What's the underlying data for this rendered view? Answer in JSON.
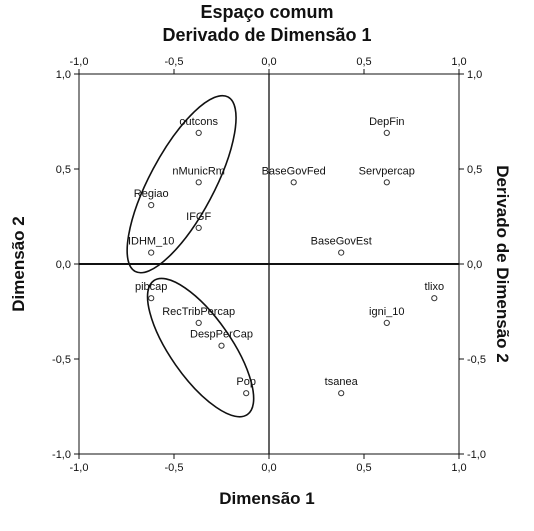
{
  "chart_data": {
    "type": "scatter",
    "title": "Espaço comum",
    "subtitle": "Derivado de Dimensão 1",
    "xlabel": "Dimensão 1",
    "ylabel": "Dimensão 2",
    "y2label": "Derivado de Dimensão 2",
    "xlim": [
      -1.0,
      1.0
    ],
    "ylim": [
      -1.0,
      1.0
    ],
    "xticks": [
      "-1,0",
      "-0,5",
      "0,0",
      "0,5",
      "1,0"
    ],
    "yticks": [
      "1,0",
      "0,5",
      "0,0",
      "-0,5",
      "-1,0"
    ],
    "xtick_values": [
      -1.0,
      -0.5,
      0.0,
      0.5,
      1.0
    ],
    "ytick_values": [
      1.0,
      0.5,
      0.0,
      -0.5,
      -1.0
    ],
    "grid": false,
    "points": [
      {
        "label": "outcons",
        "x": -0.37,
        "y": 0.69
      },
      {
        "label": "DepFin",
        "x": 0.62,
        "y": 0.69
      },
      {
        "label": "nMunicRm",
        "x": -0.37,
        "y": 0.43
      },
      {
        "label": "BaseGovFed",
        "x": 0.13,
        "y": 0.43
      },
      {
        "label": "Servpercap",
        "x": 0.62,
        "y": 0.43
      },
      {
        "label": "Regiao",
        "x": -0.62,
        "y": 0.31
      },
      {
        "label": "IFGF",
        "x": -0.37,
        "y": 0.19
      },
      {
        "label": "IDHM_10",
        "x": -0.62,
        "y": 0.06
      },
      {
        "label": "BaseGovEst",
        "x": 0.38,
        "y": 0.06
      },
      {
        "label": "pibcap",
        "x": -0.62,
        "y": -0.18
      },
      {
        "label": "tlixo",
        "x": 0.87,
        "y": -0.18
      },
      {
        "label": "RecTribPercap",
        "x": -0.37,
        "y": -0.31
      },
      {
        "label": "igni_10",
        "x": 0.62,
        "y": -0.31
      },
      {
        "label": "DespPerCap",
        "x": -0.25,
        "y": -0.43
      },
      {
        "label": "Pop",
        "x": -0.12,
        "y": -0.68
      },
      {
        "label": "tsanea",
        "x": 0.38,
        "y": -0.68
      }
    ],
    "ellipses": [
      {
        "cx": -0.46,
        "cy": 0.42,
        "rx": 0.17,
        "ry": 0.52,
        "rotation_deg": 28
      },
      {
        "cx": -0.36,
        "cy": -0.44,
        "rx": 0.16,
        "ry": 0.43,
        "rotation_deg": -35
      }
    ]
  }
}
